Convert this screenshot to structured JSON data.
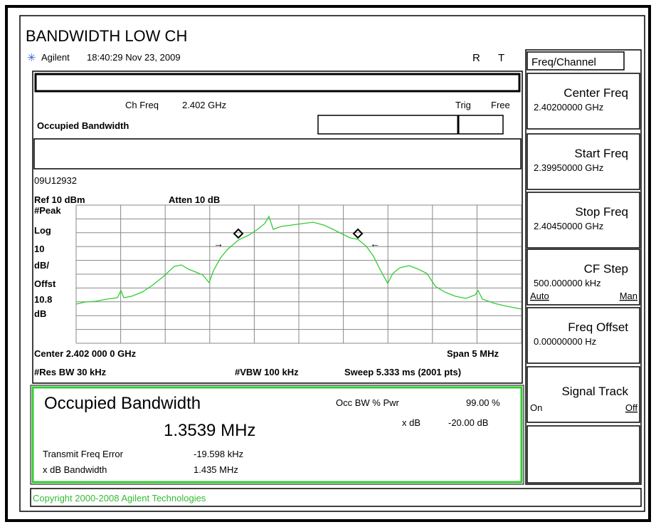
{
  "header": {
    "title": "BANDWIDTH LOW CH",
    "brand": "Agilent",
    "timestamp": "18:40:29  Nov 23, 2009",
    "indicator_r": "R",
    "indicator_t": "T"
  },
  "menu": {
    "title": "Freq/Channel",
    "softkeys": [
      {
        "label": "Center Freq",
        "value": "2.40200000 GHz"
      },
      {
        "label": "Start Freq",
        "value": "2.39950000 GHz"
      },
      {
        "label": "Stop Freq",
        "value": "2.40450000 GHz"
      },
      {
        "label": "CF Step",
        "value": "500.000000 kHz",
        "left": "Auto",
        "right": "Man"
      },
      {
        "label": "Freq Offset",
        "value": "0.00000000  Hz"
      },
      {
        "label": "Signal Track",
        "left": "On",
        "right": "Off"
      }
    ]
  },
  "display": {
    "ch_freq_label": "Ch Freq",
    "ch_freq": "2.402 GHz",
    "trig_label": "Trig",
    "trig": "Free",
    "mode": "Occupied Bandwidth",
    "serial": "09U12932",
    "ref": "Ref 10 dBm",
    "atten": "Atten 10 dB",
    "scale_labels": [
      "#Peak",
      "Log",
      "10",
      "dB/",
      "Offst",
      "10.8",
      "dB"
    ],
    "center": "Center 2.402 000 0 GHz",
    "span": "Span 5 MHz",
    "res_bw": "#Res BW 30 kHz",
    "vbw": "#VBW 100 kHz",
    "sweep": "Sweep 5.333 ms (2001 pts)"
  },
  "results": {
    "title": "Occupied Bandwidth",
    "value": "1.3539 MHz",
    "occ_pwr_label": "Occ BW % Pwr",
    "occ_pwr": "99.00 %",
    "xdb_label": "x dB",
    "xdb": "-20.00 dB",
    "freq_error_label": "Transmit Freq Error",
    "freq_error": "-19.598 kHz",
    "xdb_bw_label": "x dB Bandwidth",
    "xdb_bw": "1.435 MHz"
  },
  "footer": {
    "copyright": "Copyright 2000-2008 Agilent Technologies"
  }
}
